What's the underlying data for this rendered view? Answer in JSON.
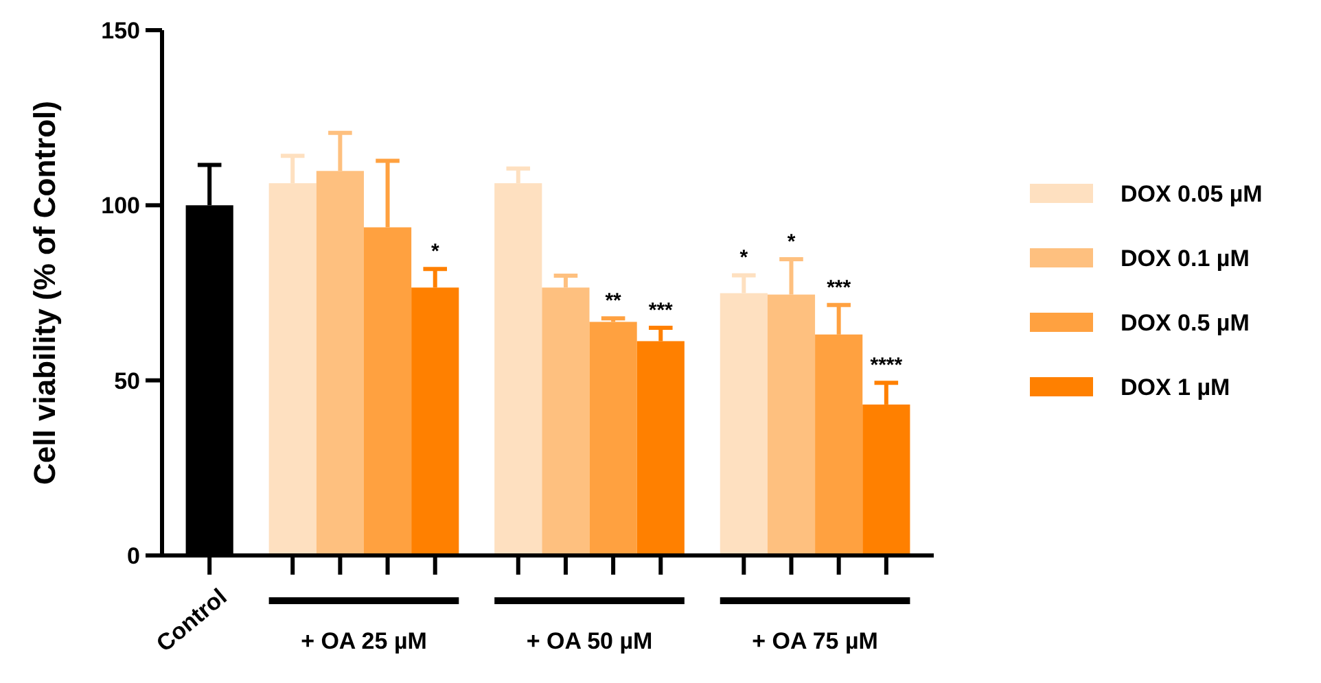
{
  "chart_data": {
    "type": "bar",
    "ylabel": "Cell viability (% of Control)",
    "categories": [
      "Control",
      "+ OA 25 µM",
      "+ OA 50 µM",
      "+ OA 75 µM"
    ],
    "series": [
      {
        "color": "#000000",
        "values": [
          100,
          null,
          null,
          null
        ],
        "errors": [
          [
            100,
            111.5
          ],
          null,
          null,
          null
        ]
      },
      {
        "name": "DOX 0.05 µM",
        "color": "#fee0c0",
        "values": [
          null,
          106.3,
          106.3,
          74.9
        ],
        "errors": [
          null,
          [
            106.3,
            114.1
          ],
          [
            106.3,
            110.5
          ],
          [
            74.9,
            80
          ]
        ],
        "value_labels": [
          null,
          null,
          null,
          "*"
        ]
      },
      {
        "name": "DOX 0.1 µM",
        "color": "#fec07f",
        "values": [
          null,
          109.8,
          76.5,
          74.5
        ],
        "errors": [
          null,
          [
            109.8,
            120.7
          ],
          [
            76.5,
            79.9
          ],
          [
            74.5,
            84.6
          ]
        ],
        "value_labels": [
          null,
          null,
          null,
          "*"
        ]
      },
      {
        "name": "DOX 0.5 µM",
        "color": "#ffa140",
        "values": [
          null,
          93.7,
          66.7,
          63.1
        ],
        "errors": [
          null,
          [
            93.7,
            112.7
          ],
          [
            66.7,
            67.7
          ],
          [
            63.1,
            71.5
          ]
        ],
        "value_labels": [
          null,
          null,
          "**",
          "***"
        ]
      },
      {
        "name": "DOX 1 µM",
        "color": "#ff8000",
        "values": [
          null,
          76.5,
          61.2,
          43.1
        ],
        "errors": [
          null,
          [
            76.5,
            81.8
          ],
          [
            61.2,
            65
          ],
          [
            43.1,
            49.3
          ]
        ],
        "value_labels": [
          null,
          "*",
          "***",
          "****"
        ]
      }
    ],
    "ylim": [
      0,
      150
    ],
    "yticks": [
      0,
      50,
      100,
      150
    ],
    "grid": false,
    "legend": "right"
  }
}
